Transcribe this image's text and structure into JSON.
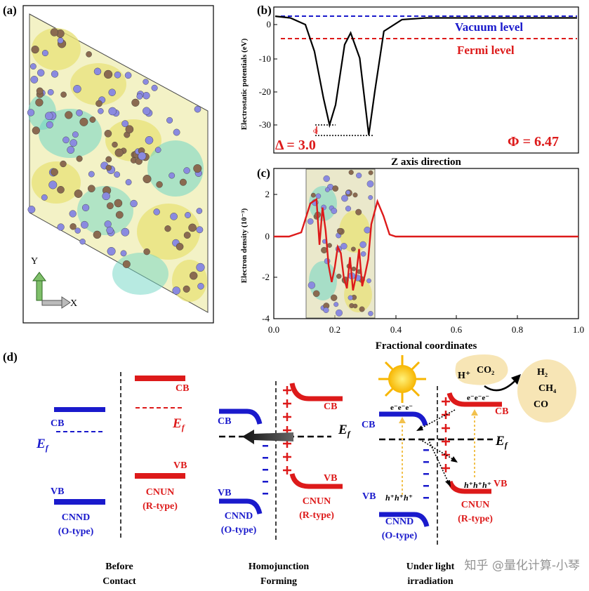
{
  "panels": {
    "a": "(a)",
    "b": "(b)",
    "c": "(c)",
    "d": "(d)"
  },
  "panel_a": {
    "axis_y": "Y",
    "axis_x": "X"
  },
  "panel_b": {
    "ylabel": "Electrostatic potentials (eV)",
    "xlabel": "Z axis direction",
    "vacuum_label": "Vacuum level",
    "fermi_label": "Fermi level",
    "delta_label": "Δ = 3.0",
    "phi_label": "Φ = 6.47",
    "phi_small_symbol": "Φ",
    "yticks": [
      "0",
      "-10",
      "-20",
      "-30"
    ]
  },
  "panel_c": {
    "ylabel": "Electron density (10⁻³)",
    "xlabel": "Fractional coordinates",
    "yticks": [
      "2",
      "0",
      "-2",
      "-4"
    ],
    "xticks": [
      "0.0",
      "0.2",
      "0.4",
      "0.6",
      "0.8",
      "1.0"
    ]
  },
  "panel_d": {
    "stage1": {
      "cb_left": "CB",
      "ef_left": "E",
      "ef_left_sub": "f",
      "vb_left": "VB",
      "name_left": "CNND",
      "type_left": "(O-type)",
      "cb_right": "CB",
      "ef_right": "E",
      "ef_right_sub": "f",
      "vb_right": "VB",
      "name_right": "CNUN",
      "type_right": "(R-type)",
      "caption_1": "Before",
      "caption_2": "Contact"
    },
    "stage2": {
      "cb_left": "CB",
      "vb_left": "VB",
      "name_left": "CNND",
      "type_left": "(O-type)",
      "cb_right": "CB",
      "vb_right": "VB",
      "name_right": "CNUN",
      "type_right": "(R-type)",
      "ef": "E",
      "ef_sub": "f",
      "caption_1": "Homojunction",
      "caption_2": "Forming"
    },
    "stage3": {
      "cb_left": "CB",
      "vb_left": "VB",
      "name_left": "CNND",
      "type_left": "(O-type)",
      "cb_right": "CB",
      "vb_right": "VB",
      "name_right": "CNUN",
      "type_right": "(R-type)",
      "ef": "E",
      "ef_sub": "f",
      "electrons_left": "e⁻e⁻e⁻",
      "holes_left": "h⁺h⁺h⁺",
      "electrons_right": "e⁻e⁻e⁻",
      "holes_right": "h⁺h⁺h⁺",
      "reactant_1": "H⁺",
      "reactant_2": "CO₂",
      "product_1": "H₂",
      "product_2": "CH₄",
      "product_3": "CO",
      "caption_1": "Under light",
      "caption_2": "irradiation"
    }
  },
  "watermark": "知乎 @量化计算-小琴",
  "colors": {
    "blue": "#1a1acc",
    "red": "#dd1a1a",
    "black": "#000000",
    "yellow_blob": "#e8e27a",
    "cyan_blob": "#6fd6c4",
    "atom_blue": "#8a8ae0",
    "atom_brown": "#8a6a50",
    "cream": "#f7e5b5",
    "sun": "#f7b500"
  },
  "chart_data": [
    {
      "panel": "b",
      "type": "line",
      "xlabel": "Z axis direction",
      "ylabel": "Electrostatic potentials (eV)",
      "ylim": [
        -35,
        3
      ],
      "series": [
        {
          "x": [
            0.0,
            0.05,
            0.1,
            0.13,
            0.16,
            0.18,
            0.2,
            0.23,
            0.25,
            0.28,
            0.31,
            0.33,
            0.36,
            0.42,
            0.5,
            0.6,
            1.0
          ],
          "y": [
            2.5,
            2.0,
            0.0,
            -8,
            -22,
            -30,
            -24,
            -6,
            -2.5,
            -10,
            -33,
            -20,
            -2,
            1.5,
            2.0,
            2.0,
            2.0
          ]
        }
      ],
      "vacuum_level": 2.0,
      "fermi_level": -4.5,
      "legend": [
        "Vacuum level",
        "Fermi level"
      ],
      "annotations": [
        "Δ = 3.0",
        "Φ = 6.47"
      ]
    },
    {
      "panel": "c",
      "type": "line",
      "xlabel": "Fractional coordinates",
      "ylabel": "Electron density (10⁻³)",
      "xlim": [
        0.0,
        1.0
      ],
      "ylim": [
        -4,
        2.7
      ],
      "series": [
        {
          "x": [
            0.0,
            0.05,
            0.09,
            0.12,
            0.14,
            0.15,
            0.16,
            0.17,
            0.18,
            0.19,
            0.2,
            0.21,
            0.22,
            0.23,
            0.24,
            0.25,
            0.26,
            0.27,
            0.28,
            0.29,
            0.3,
            0.31,
            0.32,
            0.34,
            0.36,
            0.38,
            0.4,
            0.45,
            0.6,
            1.0
          ],
          "y": [
            0.0,
            0.0,
            0.2,
            1.6,
            1.8,
            -0.4,
            1.4,
            0.3,
            -1.4,
            -2.2,
            -1.5,
            -0.5,
            -0.8,
            -2.0,
            -2.5,
            -1.0,
            -2.6,
            -1.9,
            -0.6,
            -2.4,
            -1.8,
            -1.1,
            0.6,
            1.7,
            1.0,
            0.1,
            0.0,
            0.0,
            0.0,
            0.0
          ]
        }
      ]
    }
  ]
}
